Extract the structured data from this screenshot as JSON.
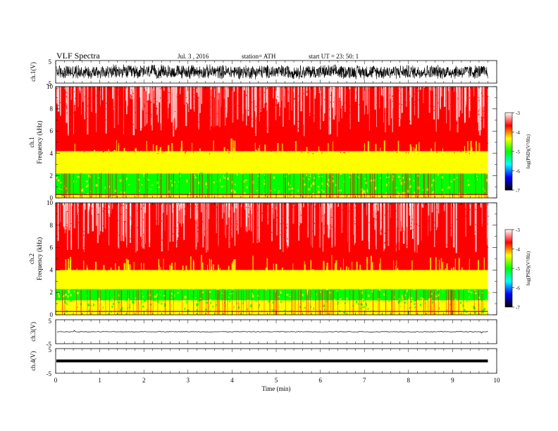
{
  "header": {
    "title": "VLF  Spectra",
    "date": "Jul.  3  , 2016",
    "station": "station= ATH",
    "start": "start  UT  =    23: 50: 1"
  },
  "colorbar": {
    "label": "log(PSD)(V²/Hz)",
    "ticks": [
      "-3",
      "-4",
      "-5",
      "-6",
      "-7"
    ],
    "colors": [
      "#ffffff",
      "#ff0000",
      "#ffff00",
      "#00ff00",
      "#00ffff",
      "#0000ff",
      "#000000"
    ]
  },
  "chart_data": [
    {
      "type": "line",
      "panel": "ch1",
      "ylabel": "ch.1(V)",
      "ylim": [
        -5,
        5
      ],
      "yticks": [
        "5",
        "-5"
      ],
      "xlim": [
        0,
        10
      ],
      "description_values": {
        "amplitude_range": [
          -3.5,
          3.5
        ]
      }
    },
    {
      "type": "heatmap",
      "panel": "ch1-spectrogram",
      "ylabel_channel": "ch.1",
      "ylabel": "Frequency  (kHz)",
      "ylim": [
        0,
        10
      ],
      "yticks": [
        "0",
        "2",
        "4",
        "6",
        "8",
        "10"
      ],
      "xlim": [
        0,
        10
      ],
      "data_end_min": 9.8,
      "zlim": [
        -7,
        -3
      ],
      "bands": [
        {
          "freq_khz": [
            0,
            0.3
          ],
          "log_psd": -4.1
        },
        {
          "freq_khz": [
            0.3,
            2.2
          ],
          "log_psd": -5.0
        },
        {
          "freq_khz": [
            2.2,
            4.2
          ],
          "log_psd": -4.3
        },
        {
          "freq_khz": [
            4.2,
            10
          ],
          "log_psd": -3.6
        }
      ]
    },
    {
      "type": "heatmap",
      "panel": "ch2-spectrogram",
      "ylabel_channel": "ch.2",
      "ylabel": "Frequency  (kHz)",
      "ylim": [
        0,
        10
      ],
      "yticks": [
        "0",
        "2",
        "4",
        "6",
        "8",
        "10"
      ],
      "xlim": [
        0,
        10
      ],
      "data_end_min": 9.8,
      "zlim": [
        -7,
        -3
      ],
      "bands": [
        {
          "freq_khz": [
            0,
            1.3
          ],
          "log_psd": -4.5
        },
        {
          "freq_khz": [
            1.3,
            2.3
          ],
          "log_psd": -4.9
        },
        {
          "freq_khz": [
            2.3,
            4.0
          ],
          "log_psd": -4.3
        },
        {
          "freq_khz": [
            4.0,
            10
          ],
          "log_psd": -3.6
        }
      ]
    },
    {
      "type": "line",
      "panel": "ch3",
      "ylabel": "ch.3(V)",
      "ylim": [
        -5,
        5
      ],
      "yticks": [
        "5",
        "-5"
      ],
      "xlim": [
        0,
        10
      ],
      "level_v": 0
    },
    {
      "type": "line",
      "panel": "ch4",
      "ylabel": "ch.4(V)",
      "ylim": [
        -5,
        5
      ],
      "yticks": [
        "5",
        "-5"
      ],
      "xlim": [
        0,
        10
      ],
      "level_v": 0
    }
  ],
  "xaxis": {
    "label": "Time  (min)",
    "ticks": [
      "0",
      "1",
      "2",
      "3",
      "4",
      "5",
      "6",
      "7",
      "8",
      "9",
      "10"
    ]
  }
}
